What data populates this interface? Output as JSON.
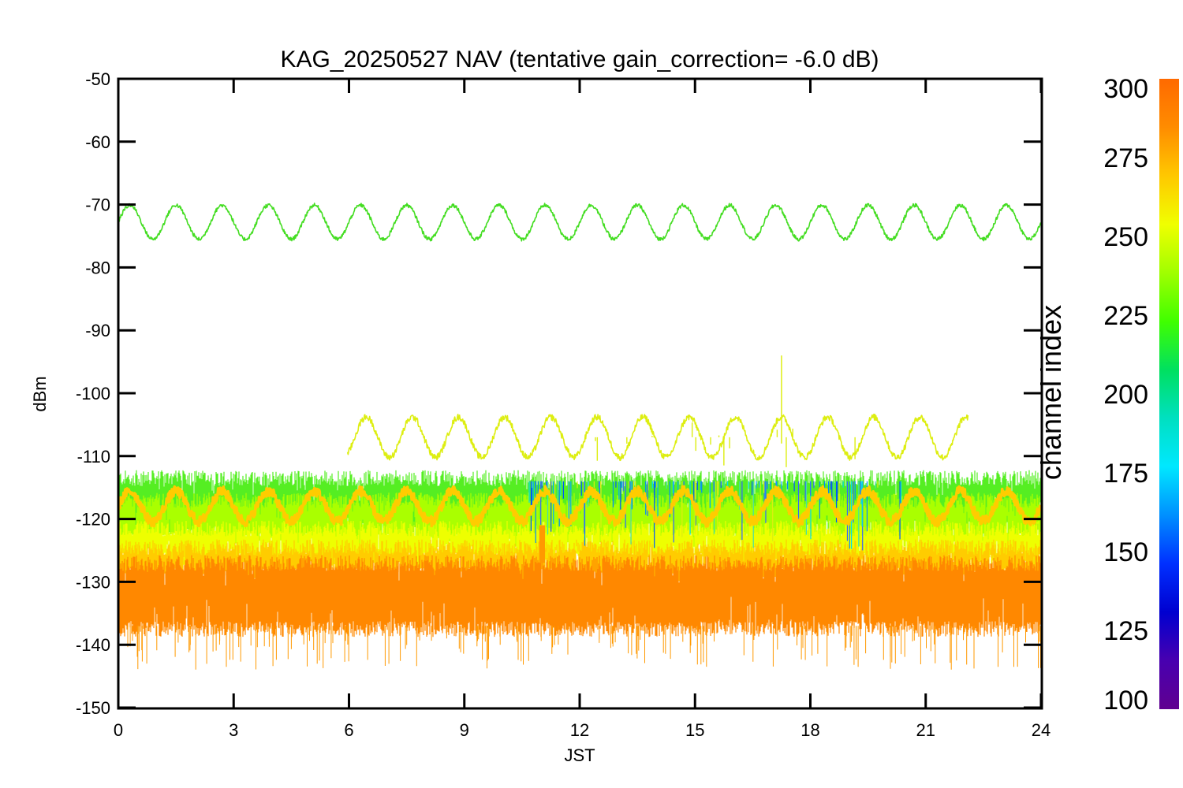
{
  "chart_data": {
    "type": "line",
    "title": "KAG_20250527 NAV (tentative gain_correction= -6.0 dB)",
    "xlabel": "JST",
    "ylabel": "dBm",
    "xlim": [
      0,
      24
    ],
    "ylim": [
      -150,
      -50
    ],
    "x_ticks": [
      "0",
      "3",
      "6",
      "9",
      "12",
      "15",
      "18",
      "21",
      "24"
    ],
    "y_ticks": [
      "-50",
      "-60",
      "-70",
      "-80",
      "-90",
      "-100",
      "-110",
      "-120",
      "-130",
      "-140",
      "-150"
    ],
    "colorbar": {
      "label": "channel index",
      "range": [
        100,
        300
      ],
      "ticks": [
        "300",
        "275",
        "250",
        "225",
        "200",
        "175",
        "150",
        "125",
        "100"
      ],
      "colors": [
        "#ff6a00",
        "#ff8c00",
        "#ffc800",
        "#f0ff00",
        "#a0ff00",
        "#40ff00",
        "#00e060",
        "#00e0c0",
        "#00e8ff",
        "#0090ff",
        "#0030ff",
        "#0000d0",
        "#4800b0",
        "#600090"
      ]
    },
    "series": [
      {
        "color": "#44dd22",
        "x_range": [
          0,
          24
        ],
        "center": -72.8,
        "amplitude": 2.7,
        "period_h": 1.2,
        "phase_h": 0.3,
        "noise": 0.3
      },
      {
        "color": "#ddee11",
        "x_range": [
          5.95,
          22.1
        ],
        "center": -107.0,
        "amplitude": 3.2,
        "period_h": 1.2,
        "phase_h": 0.45,
        "noise": 0.5
      },
      {
        "color": "#ffcc00",
        "x_range": [
          0,
          24
        ],
        "center": -118.0,
        "amplitude": 2.4,
        "period_h": 1.2,
        "phase_h": 0.3,
        "noise": 0.8
      }
    ],
    "noise_band": {
      "note": "dense noise floor from many channels",
      "layers": [
        {
          "color": "#55ee22",
          "top": -113.5,
          "bottom": -121.0
        },
        {
          "color": "#aaff00",
          "top": -117.0,
          "bottom": -123.5
        },
        {
          "color": "#eeff00",
          "top": -121.5,
          "bottom": -126.5
        },
        {
          "color": "#ffcc00",
          "top": -124.5,
          "bottom": -129.0
        },
        {
          "color": "#ff8800",
          "top": -127.0,
          "bottom": -137.5
        }
      ],
      "spike_region_x": [
        10.5,
        20.5
      ],
      "spike_max": -94.0
    }
  }
}
